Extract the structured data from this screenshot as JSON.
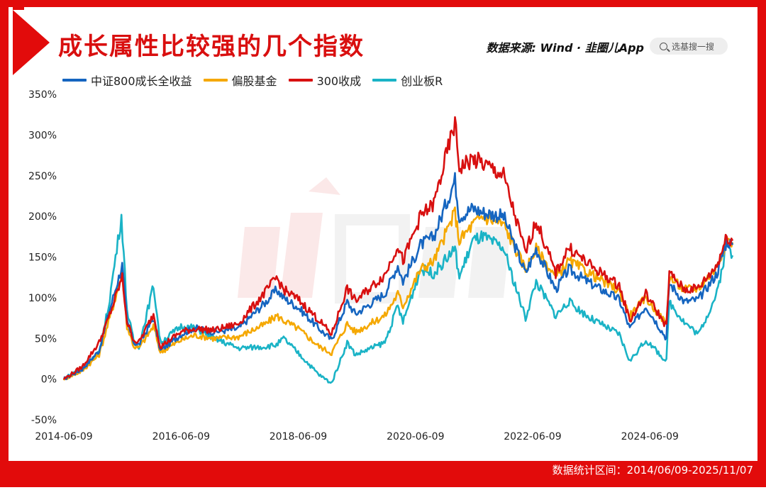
{
  "header": {
    "title": "成长属性比较强的几个指数",
    "source_text": "数据来源: Wind · 韭圈儿App",
    "search_placeholder": "选基搜一搜"
  },
  "footer": {
    "range_text": "数据统计区间：2014/06/09-2025/11/07"
  },
  "colors": {
    "frame": "#e20b0b",
    "blue": "#1565c0",
    "orange": "#f5a800",
    "red": "#d81010",
    "cyan": "#1ab3c6"
  },
  "chart_data": {
    "type": "line",
    "title": "成长属性比较强的几个指数",
    "xlabel": "",
    "ylabel": "",
    "x_ticks": [
      "2014-06-09",
      "2016-06-09",
      "2018-06-09",
      "2020-06-09",
      "2022-06-09",
      "2024-06-09"
    ],
    "y_ticks": [
      "-50%",
      "0%",
      "50%",
      "100%",
      "150%",
      "200%",
      "250%",
      "300%",
      "350%"
    ],
    "ylim": [
      -50,
      350
    ],
    "xlim": [
      "2014-06-09",
      "2025-11-07"
    ],
    "grid": false,
    "legend_position": "top-left",
    "series": [
      {
        "name": "中证800成长全收益",
        "color": "#1565c0",
        "points": [
          [
            "2014-06-09",
            0
          ],
          [
            "2014-10-01",
            12
          ],
          [
            "2015-01-15",
            35
          ],
          [
            "2015-03-15",
            80
          ],
          [
            "2015-06-08",
            140
          ],
          [
            "2015-07-08",
            70
          ],
          [
            "2015-08-20",
            45
          ],
          [
            "2015-09-20",
            42
          ],
          [
            "2015-12-20",
            75
          ],
          [
            "2016-02-01",
            35
          ],
          [
            "2016-06-09",
            55
          ],
          [
            "2016-09-01",
            63
          ],
          [
            "2017-01-01",
            58
          ],
          [
            "2017-06-01",
            62
          ],
          [
            "2017-11-20",
            95
          ],
          [
            "2018-01-25",
            110
          ],
          [
            "2018-03-10",
            100
          ],
          [
            "2018-06-09",
            88
          ],
          [
            "2018-10-18",
            62
          ],
          [
            "2019-01-03",
            48
          ],
          [
            "2019-04-10",
            95
          ],
          [
            "2019-06-01",
            80
          ],
          [
            "2019-12-01",
            105
          ],
          [
            "2020-02-20",
            140
          ],
          [
            "2020-03-23",
            120
          ],
          [
            "2020-07-10",
            165
          ],
          [
            "2020-10-01",
            175
          ],
          [
            "2021-02-10",
            245
          ],
          [
            "2021-03-09",
            200
          ],
          [
            "2021-06-01",
            210
          ],
          [
            "2021-08-01",
            205
          ],
          [
            "2021-12-10",
            200
          ],
          [
            "2022-04-26",
            130
          ],
          [
            "2022-07-01",
            160
          ],
          [
            "2022-10-31",
            110
          ],
          [
            "2023-01-20",
            135
          ],
          [
            "2023-06-01",
            118
          ],
          [
            "2023-12-01",
            98
          ],
          [
            "2024-02-05",
            62
          ],
          [
            "2024-05-15",
            90
          ],
          [
            "2024-09-20",
            50
          ],
          [
            "2024-10-08",
            118
          ],
          [
            "2025-01-10",
            95
          ],
          [
            "2025-04-08",
            98
          ],
          [
            "2025-08-01",
            130
          ],
          [
            "2025-10-01",
            170
          ],
          [
            "2025-11-07",
            165
          ]
        ]
      },
      {
        "name": "偏股基金",
        "color": "#f5a800",
        "points": [
          [
            "2014-06-09",
            0
          ],
          [
            "2014-10-01",
            10
          ],
          [
            "2015-01-15",
            30
          ],
          [
            "2015-03-15",
            70
          ],
          [
            "2015-06-08",
            130
          ],
          [
            "2015-07-08",
            65
          ],
          [
            "2015-08-20",
            40
          ],
          [
            "2015-09-20",
            38
          ],
          [
            "2015-12-20",
            65
          ],
          [
            "2016-02-01",
            33
          ],
          [
            "2016-06-09",
            48
          ],
          [
            "2016-09-01",
            54
          ],
          [
            "2017-01-01",
            50
          ],
          [
            "2017-06-01",
            52
          ],
          [
            "2017-11-20",
            68
          ],
          [
            "2018-01-25",
            78
          ],
          [
            "2018-03-10",
            72
          ],
          [
            "2018-06-09",
            62
          ],
          [
            "2018-10-18",
            40
          ],
          [
            "2019-01-03",
            32
          ],
          [
            "2019-04-10",
            68
          ],
          [
            "2019-06-01",
            58
          ],
          [
            "2019-12-01",
            78
          ],
          [
            "2020-02-20",
            105
          ],
          [
            "2020-03-23",
            90
          ],
          [
            "2020-07-10",
            135
          ],
          [
            "2020-10-01",
            145
          ],
          [
            "2021-02-10",
            205
          ],
          [
            "2021-03-09",
            170
          ],
          [
            "2021-06-01",
            190
          ],
          [
            "2021-08-01",
            200
          ],
          [
            "2021-12-10",
            190
          ],
          [
            "2022-04-26",
            135
          ],
          [
            "2022-07-01",
            160
          ],
          [
            "2022-10-31",
            125
          ],
          [
            "2023-01-20",
            145
          ],
          [
            "2023-06-01",
            130
          ],
          [
            "2023-12-01",
            108
          ],
          [
            "2024-02-05",
            78
          ],
          [
            "2024-05-15",
            100
          ],
          [
            "2024-09-20",
            68
          ],
          [
            "2024-10-08",
            125
          ],
          [
            "2025-01-10",
            110
          ],
          [
            "2025-04-08",
            112
          ],
          [
            "2025-08-01",
            138
          ],
          [
            "2025-10-01",
            172
          ],
          [
            "2025-11-07",
            168
          ]
        ]
      },
      {
        "name": "300收成",
        "color": "#d81010",
        "points": [
          [
            "2014-06-09",
            0
          ],
          [
            "2014-10-01",
            15
          ],
          [
            "2015-01-15",
            45
          ],
          [
            "2015-03-15",
            75
          ],
          [
            "2015-06-08",
            125
          ],
          [
            "2015-07-08",
            70
          ],
          [
            "2015-08-20",
            48
          ],
          [
            "2015-09-20",
            45
          ],
          [
            "2015-12-20",
            80
          ],
          [
            "2016-02-01",
            40
          ],
          [
            "2016-06-09",
            58
          ],
          [
            "2016-09-01",
            62
          ],
          [
            "2017-01-01",
            60
          ],
          [
            "2017-06-01",
            68
          ],
          [
            "2017-11-20",
            108
          ],
          [
            "2018-01-25",
            125
          ],
          [
            "2018-03-10",
            110
          ],
          [
            "2018-06-09",
            98
          ],
          [
            "2018-10-18",
            72
          ],
          [
            "2019-01-03",
            55
          ],
          [
            "2019-04-10",
            112
          ],
          [
            "2019-06-01",
            96
          ],
          [
            "2019-12-01",
            128
          ],
          [
            "2020-02-20",
            165
          ],
          [
            "2020-03-23",
            145
          ],
          [
            "2020-07-10",
            200
          ],
          [
            "2020-10-01",
            215
          ],
          [
            "2021-02-10",
            315
          ],
          [
            "2021-03-09",
            260
          ],
          [
            "2021-06-01",
            270
          ],
          [
            "2021-08-01",
            265
          ],
          [
            "2021-12-10",
            250
          ],
          [
            "2022-04-26",
            155
          ],
          [
            "2022-07-01",
            195
          ],
          [
            "2022-10-31",
            130
          ],
          [
            "2023-01-20",
            162
          ],
          [
            "2023-06-01",
            140
          ],
          [
            "2023-12-01",
            115
          ],
          [
            "2024-02-05",
            72
          ],
          [
            "2024-05-15",
            105
          ],
          [
            "2024-09-20",
            65
          ],
          [
            "2024-10-08",
            130
          ],
          [
            "2025-01-10",
            110
          ],
          [
            "2025-04-08",
            112
          ],
          [
            "2025-08-01",
            140
          ],
          [
            "2025-10-01",
            175
          ],
          [
            "2025-11-07",
            170
          ]
        ]
      },
      {
        "name": "创业板R",
        "color": "#1ab3c6",
        "points": [
          [
            "2014-06-09",
            0
          ],
          [
            "2014-10-01",
            15
          ],
          [
            "2015-01-15",
            32
          ],
          [
            "2015-03-15",
            90
          ],
          [
            "2015-06-03",
            200
          ],
          [
            "2015-07-08",
            85
          ],
          [
            "2015-08-20",
            45
          ],
          [
            "2015-09-20",
            40
          ],
          [
            "2015-12-20",
            115
          ],
          [
            "2016-02-01",
            45
          ],
          [
            "2016-06-09",
            65
          ],
          [
            "2016-09-01",
            63
          ],
          [
            "2017-01-01",
            50
          ],
          [
            "2017-06-01",
            38
          ],
          [
            "2017-11-20",
            40
          ],
          [
            "2018-01-25",
            42
          ],
          [
            "2018-03-10",
            50
          ],
          [
            "2018-06-09",
            32
          ],
          [
            "2018-10-18",
            5
          ],
          [
            "2019-01-03",
            -5
          ],
          [
            "2019-04-10",
            45
          ],
          [
            "2019-06-01",
            30
          ],
          [
            "2019-12-01",
            45
          ],
          [
            "2020-02-20",
            90
          ],
          [
            "2020-03-23",
            70
          ],
          [
            "2020-07-10",
            135
          ],
          [
            "2020-10-01",
            130
          ],
          [
            "2021-02-10",
            160
          ],
          [
            "2021-03-09",
            125
          ],
          [
            "2021-06-01",
            170
          ],
          [
            "2021-08-01",
            175
          ],
          [
            "2021-12-10",
            160
          ],
          [
            "2022-04-26",
            75
          ],
          [
            "2022-07-01",
            120
          ],
          [
            "2022-10-31",
            78
          ],
          [
            "2023-01-20",
            95
          ],
          [
            "2023-06-01",
            75
          ],
          [
            "2023-12-01",
            55
          ],
          [
            "2024-02-05",
            22
          ],
          [
            "2024-05-15",
            48
          ],
          [
            "2024-09-20",
            22
          ],
          [
            "2024-10-08",
            95
          ],
          [
            "2025-01-10",
            70
          ],
          [
            "2025-04-08",
            55
          ],
          [
            "2025-08-01",
            105
          ],
          [
            "2025-10-01",
            165
          ],
          [
            "2025-11-07",
            152
          ]
        ]
      }
    ]
  }
}
